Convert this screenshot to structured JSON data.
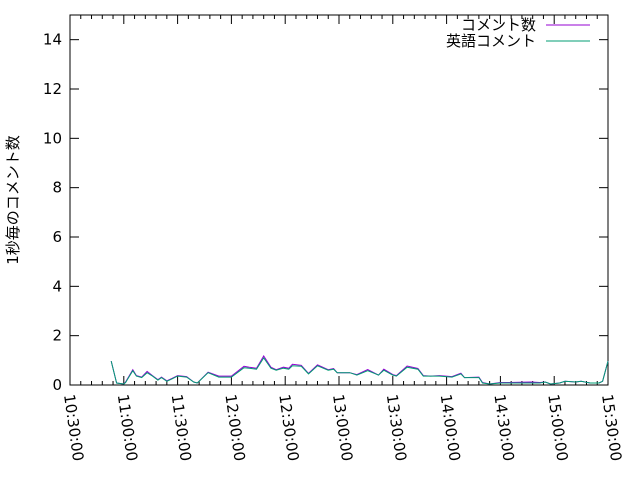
{
  "chart_data": {
    "type": "line",
    "title": "",
    "xlabel": "",
    "ylabel": "1秒毎のコメント数",
    "xlim": [
      "10:30:00",
      "15:30:00"
    ],
    "ylim": [
      0,
      15
    ],
    "x_ticks": [
      "10:30:00",
      "11:00:00",
      "11:30:00",
      "12:00:00",
      "12:30:00",
      "13:00:00",
      "13:30:00",
      "14:00:00",
      "14:30:00",
      "15:00:00",
      "15:30:00"
    ],
    "y_ticks": [
      0,
      2,
      4,
      6,
      8,
      10,
      12,
      14
    ],
    "grid": false,
    "legend_position": "top-right",
    "x": [
      "10:53",
      "10:56",
      "11:00",
      "11:01",
      "11:05",
      "11:07",
      "11:10",
      "11:13",
      "11:16",
      "11:19",
      "11:21",
      "11:24",
      "11:27",
      "11:30",
      "11:35",
      "11:39",
      "11:41",
      "11:47",
      "11:53",
      "12:00",
      "12:07",
      "12:10",
      "12:14",
      "12:18",
      "12:22",
      "12:25",
      "12:29",
      "12:32",
      "12:34",
      "12:39",
      "12:43",
      "12:48",
      "12:54",
      "12:57",
      "12:59",
      "13:06",
      "13:10",
      "13:16",
      "13:22",
      "13:25",
      "13:30",
      "13:32",
      "13:38",
      "13:44",
      "13:47",
      "13:51",
      "13:56",
      "14:03",
      "14:08",
      "14:10",
      "14:18",
      "14:20",
      "14:24",
      "14:30",
      "14:35",
      "14:47",
      "14:52",
      "14:55",
      "14:58",
      "15:03",
      "15:06",
      "15:12",
      "15:15",
      "15:20",
      "15:25",
      "15:27",
      "15:30"
    ],
    "series": [
      {
        "name": "コメント数",
        "color": "#9400d3",
        "values": [
          0.97,
          0.08,
          0.04,
          0.12,
          0.62,
          0.38,
          0.32,
          0.55,
          0.38,
          0.22,
          0.32,
          0.17,
          0.27,
          0.38,
          0.34,
          0.12,
          0.08,
          0.52,
          0.36,
          0.36,
          0.76,
          0.72,
          0.68,
          1.18,
          0.72,
          0.62,
          0.72,
          0.68,
          0.84,
          0.8,
          0.47,
          0.82,
          0.62,
          0.67,
          0.5,
          0.5,
          0.42,
          0.63,
          0.4,
          0.64,
          0.42,
          0.38,
          0.77,
          0.67,
          0.38,
          0.36,
          0.38,
          0.34,
          0.48,
          0.3,
          0.32,
          0.1,
          0.04,
          0.1,
          0.1,
          0.12,
          0.1,
          0.12,
          0.04,
          0.08,
          0.15,
          0.12,
          0.15,
          0.08,
          0.08,
          0.15,
          0.97
        ]
      },
      {
        "name": "英語コメント",
        "color": "#009e73",
        "values": [
          0.97,
          0.08,
          0.04,
          0.1,
          0.58,
          0.36,
          0.3,
          0.5,
          0.36,
          0.2,
          0.3,
          0.15,
          0.25,
          0.36,
          0.32,
          0.12,
          0.08,
          0.5,
          0.32,
          0.32,
          0.7,
          0.68,
          0.64,
          1.1,
          0.68,
          0.6,
          0.68,
          0.64,
          0.78,
          0.76,
          0.45,
          0.78,
          0.6,
          0.64,
          0.5,
          0.5,
          0.4,
          0.58,
          0.4,
          0.6,
          0.4,
          0.36,
          0.72,
          0.64,
          0.36,
          0.36,
          0.36,
          0.32,
          0.45,
          0.3,
          0.3,
          0.08,
          0.04,
          0.08,
          0.08,
          0.08,
          0.08,
          0.12,
          0.04,
          0.08,
          0.15,
          0.12,
          0.15,
          0.08,
          0.08,
          0.15,
          0.97
        ]
      }
    ]
  }
}
